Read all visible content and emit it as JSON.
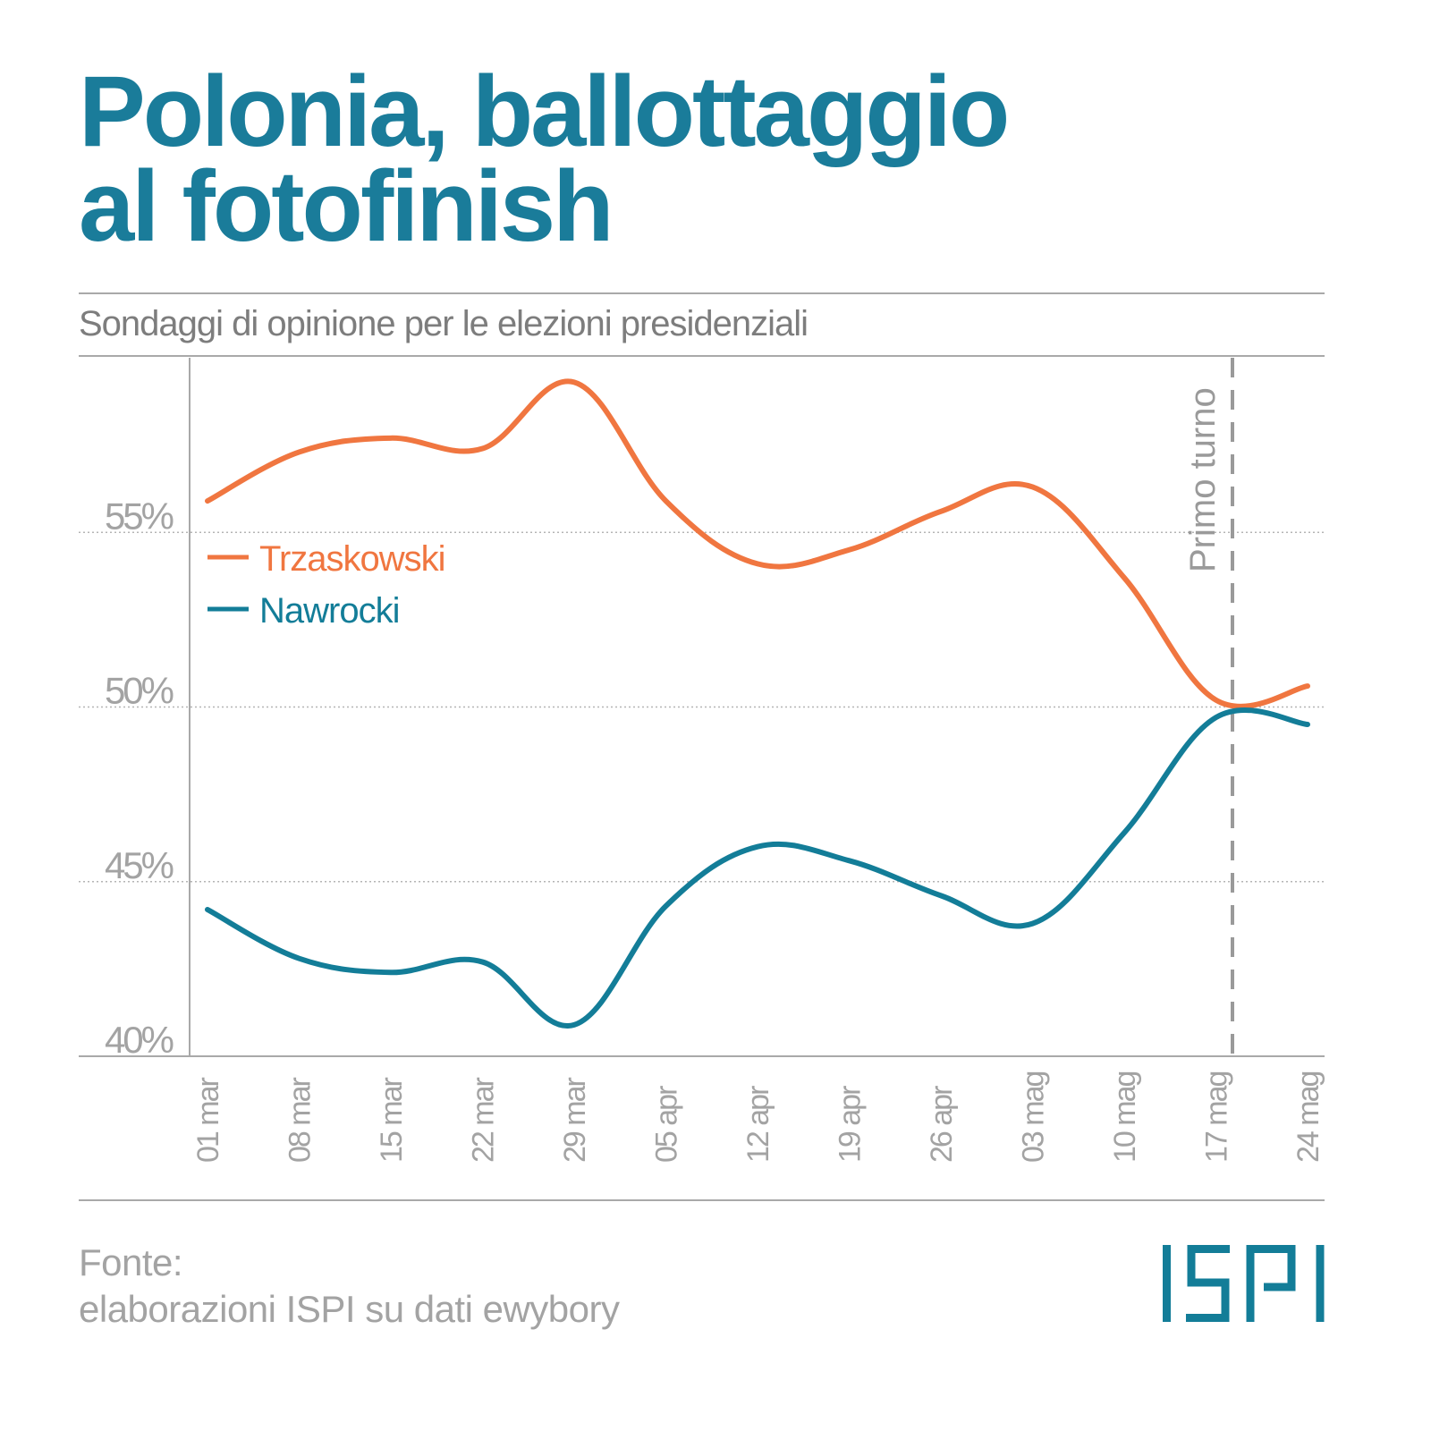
{
  "header": {
    "title_line1": "Polonia, ballottaggio",
    "title_line2": "al fotofinish",
    "subtitle": "Sondaggi di opinione per le elezioni presidenziali"
  },
  "legend": {
    "items": [
      {
        "label": "Trzaskowski",
        "color": "#f07640"
      },
      {
        "label": "Nawrocki",
        "color": "#137d98"
      }
    ]
  },
  "annotation": {
    "label": "Primo turno",
    "color": "#9a9a9a"
  },
  "footer": {
    "source_label": "Fonte:",
    "source_text": "elaborazioni ISPI su dati ewybory",
    "logo_text": "ISPI",
    "logo_color": "#137d98"
  },
  "chart_data": {
    "type": "line",
    "title": "Polonia, ballottaggio al fotofinish",
    "subtitle": "Sondaggi di opinione per le elezioni presidenziali",
    "xlabel": "",
    "ylabel": "",
    "categories": [
      "01 mar",
      "08 mar",
      "15 mar",
      "22 mar",
      "29 mar",
      "05 apr",
      "12 apr",
      "19 apr",
      "26 apr",
      "03 mag",
      "10 mag",
      "17 mag",
      "24 mag"
    ],
    "series": [
      {
        "name": "Trzaskowski",
        "color": "#f07640",
        "values": [
          55.9,
          57.3,
          57.7,
          57.4,
          59.3,
          55.9,
          54.1,
          54.5,
          55.6,
          56.3,
          53.7,
          50.2,
          50.6
        ]
      },
      {
        "name": "Nawrocki",
        "color": "#137d98",
        "values": [
          44.2,
          42.8,
          42.4,
          42.7,
          40.9,
          44.3,
          46.0,
          45.6,
          44.6,
          43.8,
          46.4,
          49.7,
          49.5
        ]
      }
    ],
    "yticks": [
      40,
      45,
      50,
      55
    ],
    "ytick_labels": [
      "40%",
      "45%",
      "50%",
      "55%"
    ],
    "ylim": [
      40,
      60
    ],
    "grid": "horizontal dotted",
    "legend_position": "inside upper-left",
    "annotations": [
      {
        "type": "vline",
        "x_between": [
          "17 mag",
          "24 mag"
        ],
        "near": "17 mag",
        "label": "Primo turno",
        "style": "dashed"
      }
    ],
    "source": "Fonte: elaborazioni ISPI su dati ewybory"
  }
}
